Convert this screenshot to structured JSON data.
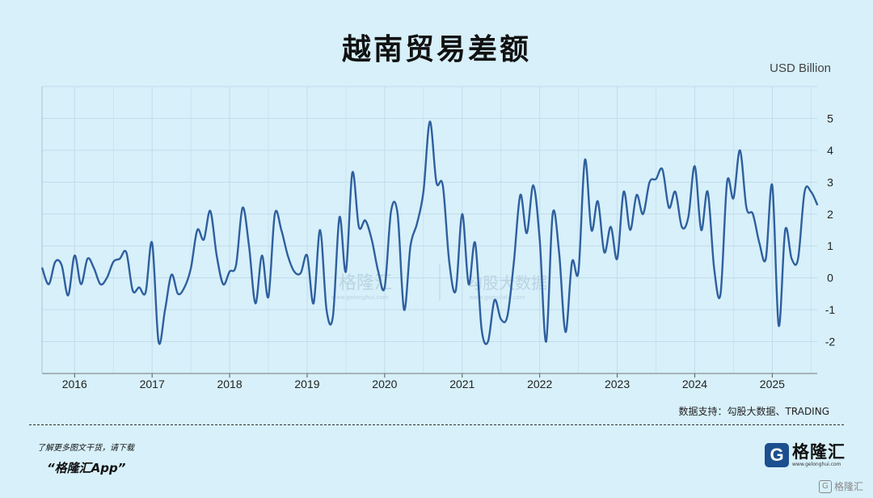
{
  "page": {
    "title": "越南贸易差额",
    "unit": "USD Billion",
    "source": "数据支持：勾股大数据、TRADING",
    "footer_note": "了解更多图文干货，请下载",
    "footer_app": "“格隆汇App”",
    "logo_letter": "G",
    "logo_name": "格隆汇",
    "logo_url": "www.gelonghui.com",
    "corner_mark": "格隆汇",
    "watermark_left": "格隆汇",
    "watermark_left_url": "www.gelonghui.com",
    "watermark_right": "勾股大数据",
    "watermark_right_url": "www.gogudata.com"
  },
  "colors": {
    "background": "#d7f0fa",
    "line": "#2f5f9e",
    "grid": "#c2dcea"
  },
  "chart_data": {
    "type": "line",
    "title": "越南贸易差额",
    "ylabel": "USD Billion",
    "ylim": [
      -3,
      6
    ],
    "yticks": [
      -2,
      -1,
      0,
      1,
      2,
      3,
      4,
      5
    ],
    "xlim": [
      2015.58,
      2025.58
    ],
    "xticks": [
      "2016",
      "2017",
      "2018",
      "2019",
      "2020",
      "2021",
      "2022",
      "2023",
      "2024",
      "2025"
    ],
    "grid": true,
    "series": [
      {
        "x": [
          2015.583,
          2015.667,
          2015.75,
          2015.833,
          2015.917,
          2016.0,
          2016.083,
          2016.167,
          2016.25,
          2016.333,
          2016.417,
          2016.5,
          2016.583,
          2016.667,
          2016.75,
          2016.833,
          2016.917,
          2017.0,
          2017.083,
          2017.167,
          2017.25,
          2017.333,
          2017.417,
          2017.5,
          2017.583,
          2017.667,
          2017.75,
          2017.833,
          2017.917,
          2018.0,
          2018.083,
          2018.167,
          2018.25,
          2018.333,
          2018.417,
          2018.5,
          2018.583,
          2018.667,
          2018.75,
          2018.833,
          2018.917,
          2019.0,
          2019.083,
          2019.167,
          2019.25,
          2019.333,
          2019.417,
          2019.5,
          2019.583,
          2019.667,
          2019.75,
          2019.833,
          2019.917,
          2020.0,
          2020.083,
          2020.167,
          2020.25,
          2020.333,
          2020.417,
          2020.5,
          2020.583,
          2020.667,
          2020.75,
          2020.833,
          2020.917,
          2021.0,
          2021.083,
          2021.167,
          2021.25,
          2021.333,
          2021.417,
          2021.5,
          2021.583,
          2021.667,
          2021.75,
          2021.833,
          2021.917,
          2022.0,
          2022.083,
          2022.167,
          2022.25,
          2022.333,
          2022.417,
          2022.5,
          2022.583,
          2022.667,
          2022.75,
          2022.833,
          2022.917,
          2023.0,
          2023.083,
          2023.167,
          2023.25,
          2023.333,
          2023.417,
          2023.5,
          2023.583,
          2023.667,
          2023.75,
          2023.833,
          2023.917,
          2024.0,
          2024.083,
          2024.167,
          2024.25,
          2024.333,
          2024.417,
          2024.5,
          2024.583,
          2024.667,
          2024.75,
          2024.833,
          2024.917,
          2025.0,
          2025.083,
          2025.167,
          2025.25,
          2025.333,
          2025.417,
          2025.5,
          2025.58
        ],
        "y": [
          0.3,
          -0.2,
          0.5,
          0.4,
          -0.55,
          0.7,
          -0.2,
          0.6,
          0.3,
          -0.2,
          0.0,
          0.5,
          0.6,
          0.8,
          -0.4,
          -0.3,
          -0.45,
          1.1,
          -2.0,
          -1.0,
          0.1,
          -0.5,
          -0.3,
          0.3,
          1.5,
          1.2,
          2.1,
          0.7,
          -0.2,
          0.2,
          0.4,
          2.2,
          1.0,
          -0.8,
          0.7,
          -0.6,
          2.0,
          1.5,
          0.7,
          0.2,
          0.15,
          0.7,
          -0.8,
          1.5,
          -1.0,
          -1.2,
          1.9,
          0.2,
          3.3,
          1.6,
          1.8,
          1.2,
          0.2,
          -0.3,
          2.1,
          2.0,
          -1.0,
          1.0,
          1.7,
          2.7,
          4.9,
          3.0,
          2.9,
          0.5,
          -0.4,
          2.0,
          -0.2,
          1.1,
          -1.6,
          -2.0,
          -0.7,
          -1.3,
          -1.2,
          0.5,
          2.6,
          1.4,
          2.9,
          1.2,
          -2.0,
          2.0,
          0.8,
          -1.7,
          0.5,
          0.2,
          3.7,
          1.5,
          2.4,
          0.8,
          1.6,
          0.6,
          2.7,
          1.5,
          2.6,
          2.0,
          3.0,
          3.1,
          3.4,
          2.2,
          2.7,
          1.6,
          1.9,
          3.5,
          1.5,
          2.7,
          0.3,
          -0.5,
          3.0,
          2.5,
          4.0,
          2.2,
          2.0,
          1.1,
          0.6,
          2.9,
          -1.5,
          1.5,
          0.6,
          0.6,
          2.7,
          2.7,
          2.3
        ]
      }
    ]
  }
}
